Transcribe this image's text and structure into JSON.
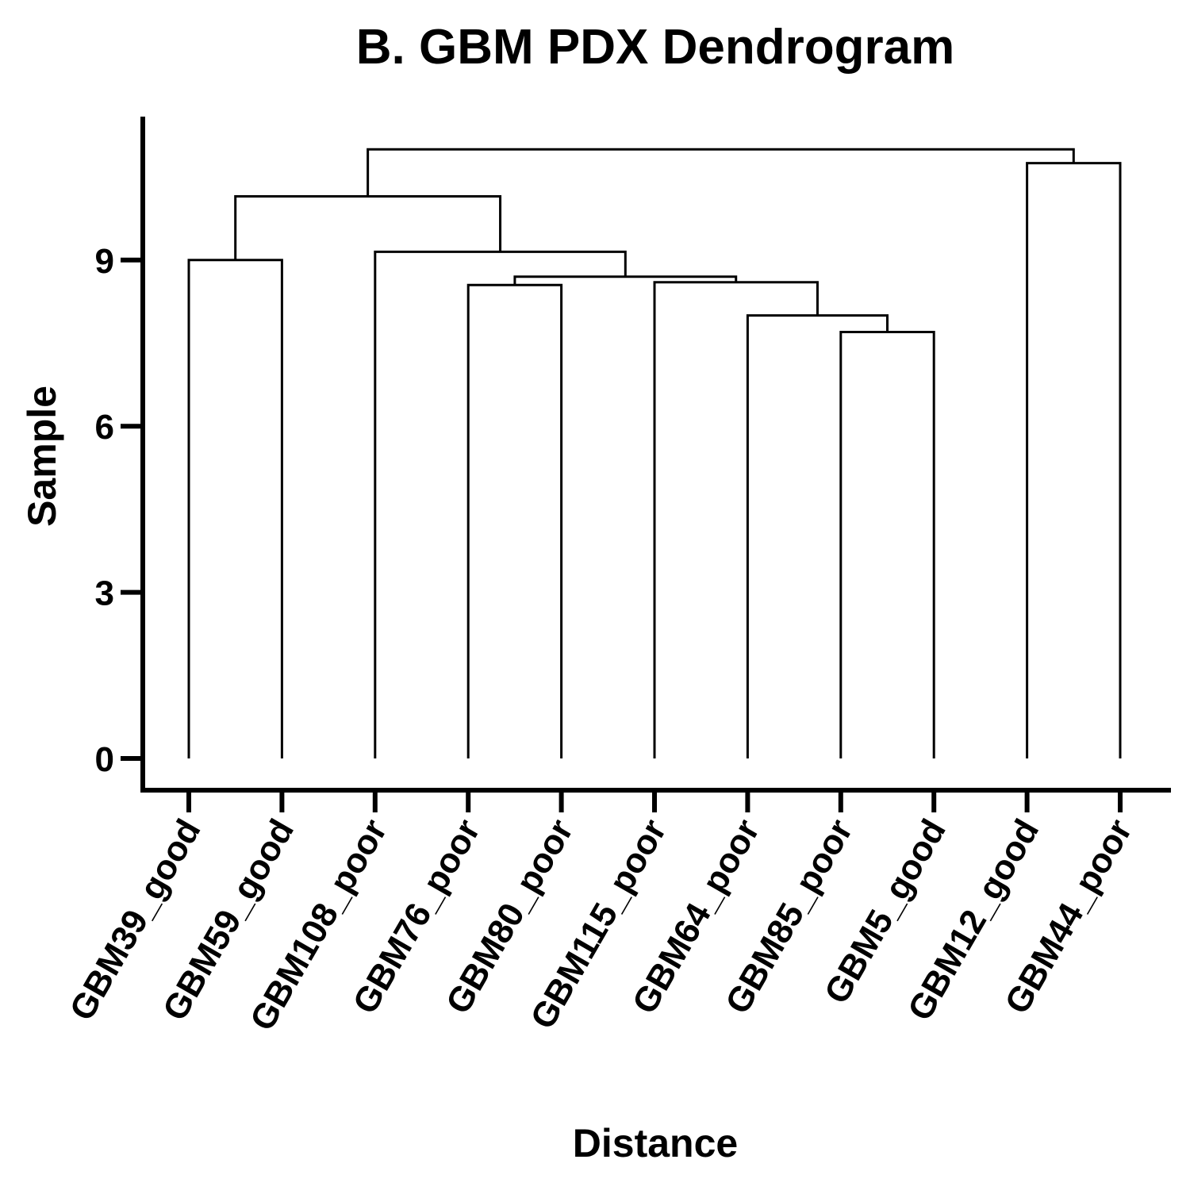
{
  "chart_data": {
    "type": "dendrogram",
    "title": "B. GBM PDX Dendrogram",
    "xlabel": "Distance",
    "ylabel": "Sample",
    "ylim": [
      0,
      11.5
    ],
    "yticks": [
      "0",
      "3",
      "6",
      "9"
    ],
    "categories": [
      "GBM39_good",
      "GBM59_good",
      "GBM108_poor",
      "GBM76_poor",
      "GBM80_poor",
      "GBM115_poor",
      "GBM64_poor",
      "GBM85_poor",
      "GBM5_good",
      "GBM12_good",
      "GBM44_poor"
    ],
    "merges": [
      {
        "a": "leaf:GBM39_good",
        "b": "leaf:GBM59_good",
        "height": 9.0
      },
      {
        "a": "leaf:GBM76_poor",
        "b": "leaf:GBM80_poor",
        "height": 8.55
      },
      {
        "a": "leaf:GBM85_poor",
        "b": "leaf:GBM5_good",
        "height": 7.7
      },
      {
        "a": "leaf:GBM64_poor",
        "b": "node:2",
        "height": 8.0
      },
      {
        "a": "leaf:GBM115_poor",
        "b": "node:3",
        "height": 8.6
      },
      {
        "a": "node:1",
        "b": "node:4",
        "height": 8.7
      },
      {
        "a": "leaf:GBM108_poor",
        "b": "node:5",
        "height": 9.15
      },
      {
        "a": "node:0",
        "b": "node:6",
        "height": 10.15
      },
      {
        "a": "leaf:GBM12_good",
        "b": "leaf:GBM44_poor",
        "height": 10.75
      },
      {
        "a": "node:7",
        "b": "node:8",
        "height": 11.0
      }
    ],
    "grid": false,
    "legend": "none"
  }
}
